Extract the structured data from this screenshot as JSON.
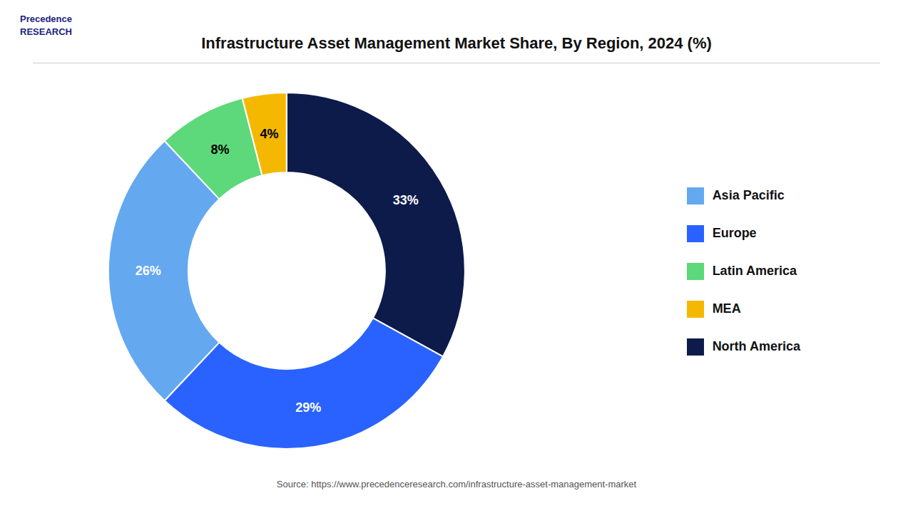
{
  "chart_data": {
    "type": "pie",
    "title": "Infrastructure Asset Management Market Share, By Region, 2024 (%)",
    "categories": [
      "North America",
      "Europe",
      "Asia Pacific",
      "Latin America",
      "MEA"
    ],
    "values": [
      33,
      29,
      26,
      8,
      4
    ],
    "value_labels": [
      "33%",
      "29%",
      "26%",
      "8%",
      "4%"
    ],
    "colors": [
      "#0d1b4b",
      "#2962ff",
      "#64a8f0",
      "#5dd87a",
      "#f5b800"
    ],
    "data_labels": true,
    "legend": "right",
    "annotations": [
      "Precedence\nRESEARCH",
      "Source: https://www.precedenceresearch.com/infrastructure-asset-management-market"
    ]
  }
}
